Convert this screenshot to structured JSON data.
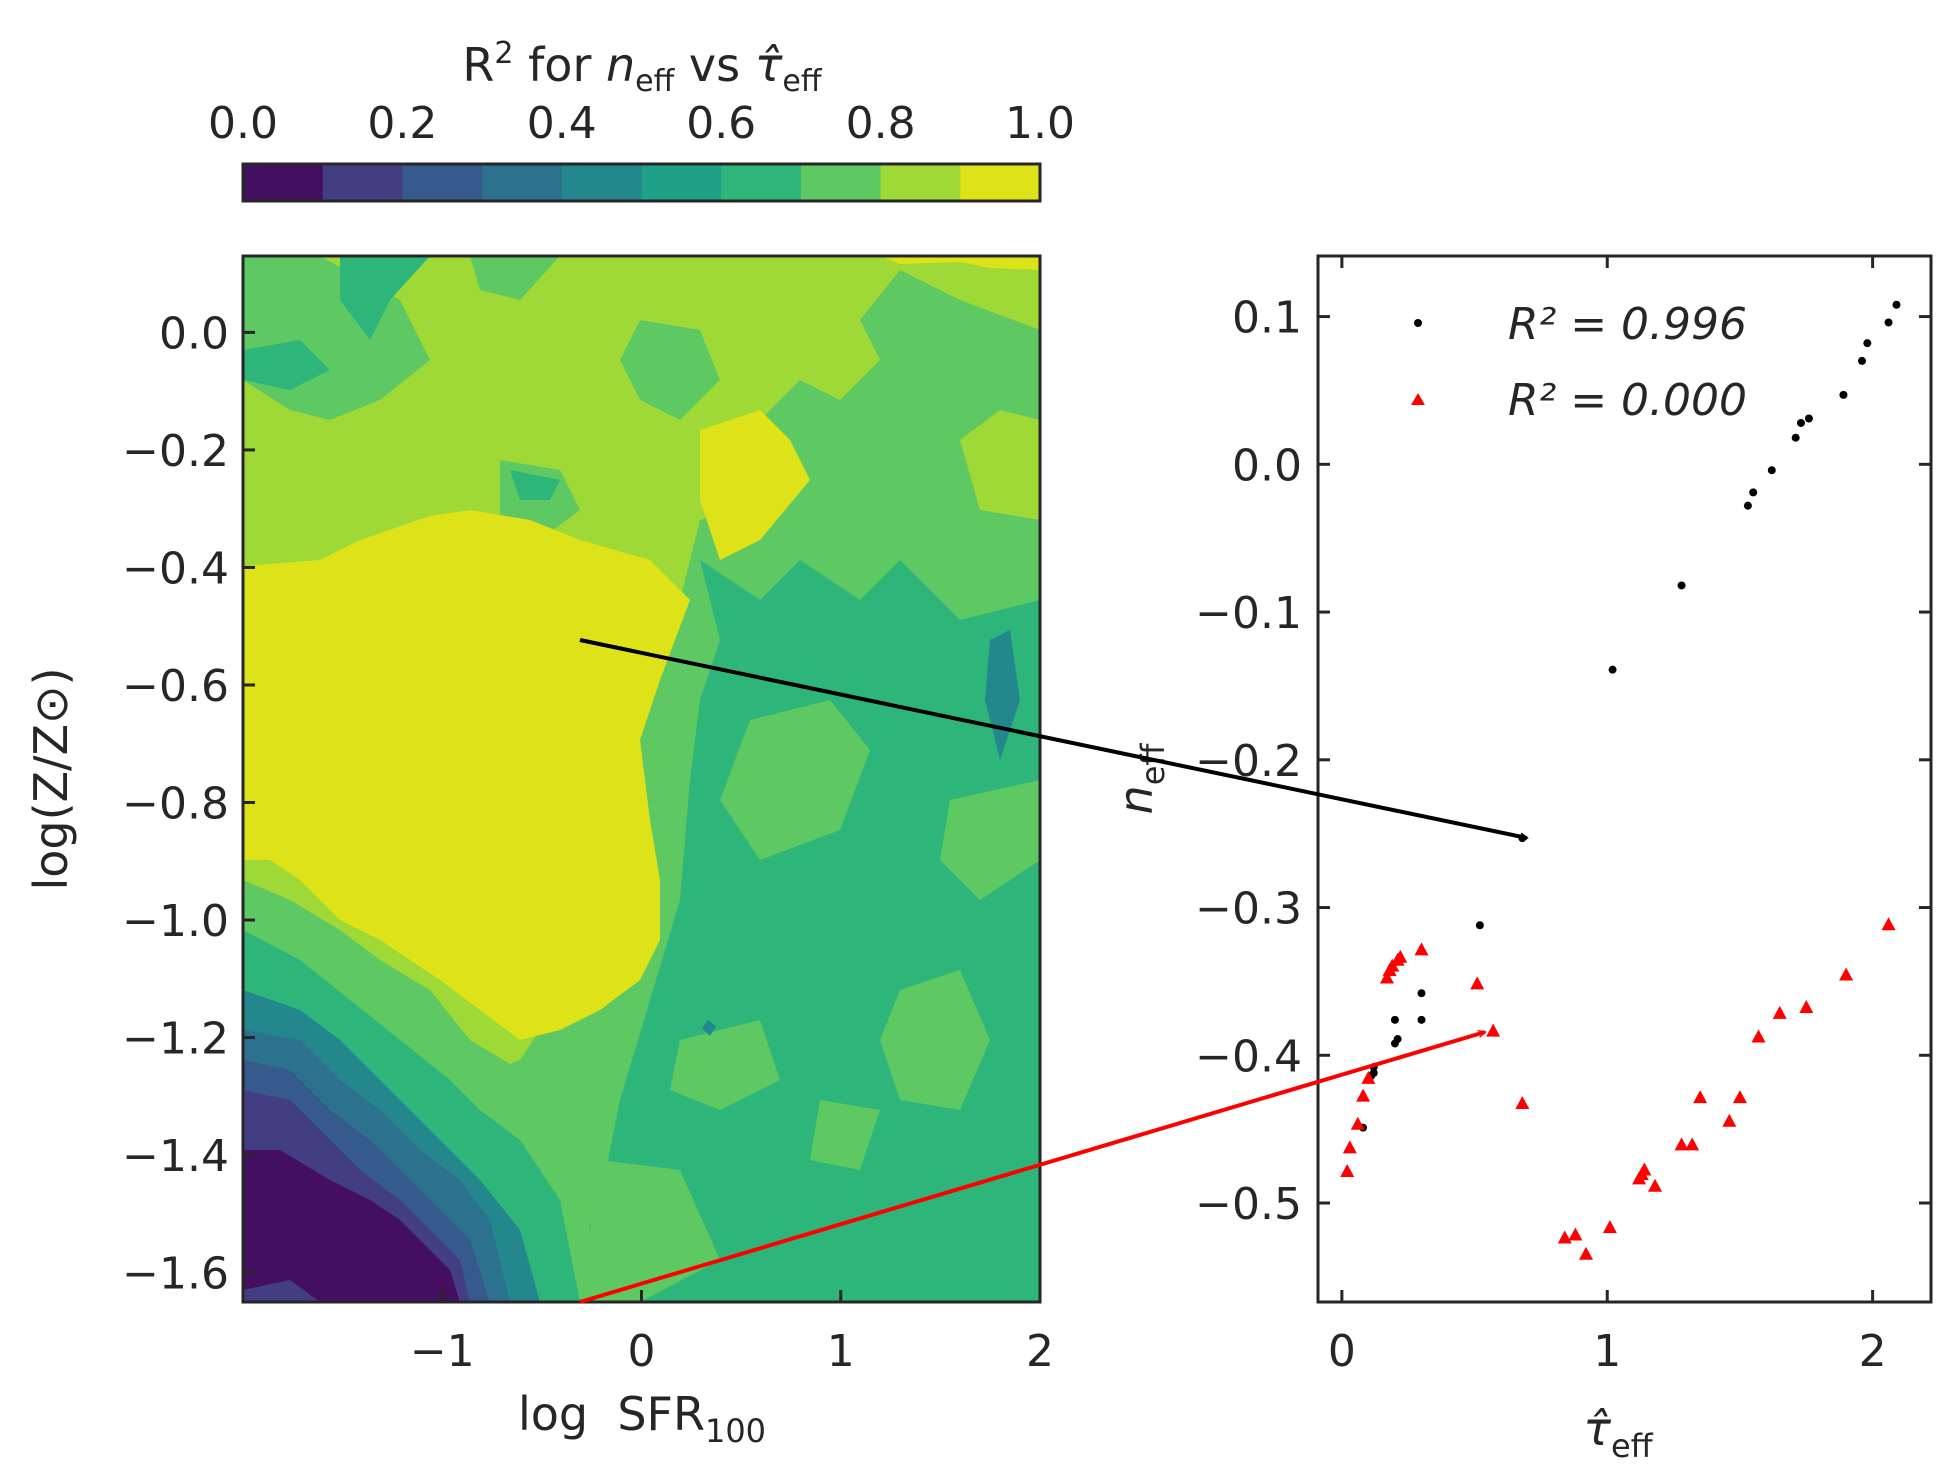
{
  "chart_data": [
    {
      "type": "heatmap",
      "subtype": "filled-contour",
      "colorbar": {
        "title": "R² for n_eff vs τ̂_eff",
        "title_parts": {
          "r": "R",
          "sup": "2",
          "for": " for ",
          "n": "n",
          "n_sub": "eff",
          "vs": " vs ",
          "tau": "τ̂",
          "tau_sub": "eff"
        },
        "ticks": [
          "0.0",
          "0.2",
          "0.4",
          "0.6",
          "0.8",
          "1.0"
        ],
        "range": [
          0.0,
          1.0
        ],
        "levels": 10,
        "colors": [
          "#440f5e",
          "#433d84",
          "#365a8b",
          "#2c718e",
          "#24878d",
          "#1fa187",
          "#2db57a",
          "#5ec962",
          "#9fd938",
          "#dde318"
        ],
        "placement": "top"
      },
      "xlabel": {
        "main": "log  SFR",
        "sub": "100"
      },
      "ylabel": "log(Z/Z⊙)",
      "x_ticks": [
        "−1",
        "0",
        "1",
        "2"
      ],
      "x_tick_values": [
        -1,
        0,
        1,
        2
      ],
      "y_ticks": [
        "0.0",
        "−0.2",
        "−0.4",
        "−0.6",
        "−0.8",
        "−1.0",
        "−1.2",
        "−1.4",
        "−1.6"
      ],
      "y_tick_values": [
        0.0,
        -0.2,
        -0.4,
        -0.6,
        -0.8,
        -1.0,
        -1.2,
        -1.4,
        -1.6
      ],
      "xlim": [
        -2.0,
        2.0
      ],
      "ylim": [
        -1.65,
        0.13
      ],
      "approx_zones": [
        {
          "description": "high-R² plateau",
          "x_range": [
            -2.0,
            0.2
          ],
          "y_range": [
            -1.1,
            -0.4
          ],
          "r2": 0.95
        },
        {
          "description": "low-R² corner",
          "x_range": [
            -2.0,
            -0.2
          ],
          "y_range": [
            -1.65,
            -1.4
          ],
          "r2": 0.05
        },
        {
          "description": "moderate R² right side",
          "x_range": [
            0.5,
            2.0
          ],
          "y_range": [
            -1.65,
            -0.4
          ],
          "r2": 0.65
        }
      ]
    },
    {
      "type": "scatter",
      "xlabel": {
        "main": "τ̂",
        "sub": "eff"
      },
      "ylabel": {
        "main": "n",
        "sub": "eff"
      },
      "x_ticks": [
        "0",
        "1",
        "2"
      ],
      "x_tick_values": [
        0,
        1,
        2
      ],
      "y_ticks": [
        "0.1",
        "0.0",
        "−0.1",
        "−0.2",
        "−0.3",
        "−0.4",
        "−0.5"
      ],
      "y_tick_values": [
        0.1,
        0.0,
        -0.1,
        -0.2,
        -0.3,
        -0.4,
        -0.5
      ],
      "xlim": [
        -0.09,
        2.22
      ],
      "ylim": [
        -0.567,
        0.141
      ],
      "legend_position": "top-left",
      "series": [
        {
          "name": "R² = 0.996",
          "marker": "dot",
          "color": "#000000",
          "points": [
            [
              2.09,
              0.108
            ],
            [
              2.06,
              0.096
            ],
            [
              1.98,
              0.082
            ],
            [
              1.96,
              0.07
            ],
            [
              1.89,
              0.047
            ],
            [
              1.76,
              0.031
            ],
            [
              1.73,
              0.028
            ],
            [
              1.71,
              0.018
            ],
            [
              1.62,
              -0.004
            ],
            [
              1.55,
              -0.019
            ],
            [
              1.53,
              -0.028
            ],
            [
              1.28,
              -0.082
            ],
            [
              1.02,
              -0.139
            ],
            [
              0.68,
              -0.253
            ],
            [
              0.52,
              -0.312
            ],
            [
              0.3,
              -0.358
            ],
            [
              0.3,
              -0.376
            ],
            [
              0.2,
              -0.376
            ],
            [
              0.21,
              -0.389
            ],
            [
              0.2,
              -0.392
            ],
            [
              0.12,
              -0.408
            ],
            [
              0.12,
              -0.412
            ],
            [
              0.11,
              -0.414
            ],
            [
              0.08,
              -0.449
            ]
          ]
        },
        {
          "name": "R² = 0.000",
          "marker": "triangle",
          "color": "#ff0000",
          "points": [
            [
              2.06,
              -0.312
            ],
            [
              1.9,
              -0.346
            ],
            [
              1.75,
              -0.368
            ],
            [
              1.65,
              -0.372
            ],
            [
              1.57,
              -0.388
            ],
            [
              1.5,
              -0.429
            ],
            [
              1.46,
              -0.445
            ],
            [
              1.32,
              -0.461
            ],
            [
              1.28,
              -0.461
            ],
            [
              1.35,
              -0.429
            ],
            [
              1.18,
              -0.489
            ],
            [
              1.13,
              -0.481
            ],
            [
              1.12,
              -0.484
            ],
            [
              1.14,
              -0.478
            ],
            [
              1.01,
              -0.517
            ],
            [
              0.92,
              -0.535
            ],
            [
              0.88,
              -0.522
            ],
            [
              0.84,
              -0.524
            ],
            [
              0.68,
              -0.433
            ],
            [
              0.57,
              -0.384
            ],
            [
              0.51,
              -0.352
            ],
            [
              0.3,
              -0.329
            ],
            [
              0.22,
              -0.334
            ],
            [
              0.21,
              -0.336
            ],
            [
              0.19,
              -0.34
            ],
            [
              0.18,
              -0.343
            ],
            [
              0.17,
              -0.348
            ],
            [
              0.1,
              -0.416
            ],
            [
              0.08,
              -0.428
            ],
            [
              0.06,
              -0.447
            ],
            [
              0.03,
              -0.463
            ],
            [
              0.02,
              -0.479
            ]
          ]
        }
      ]
    }
  ]
}
